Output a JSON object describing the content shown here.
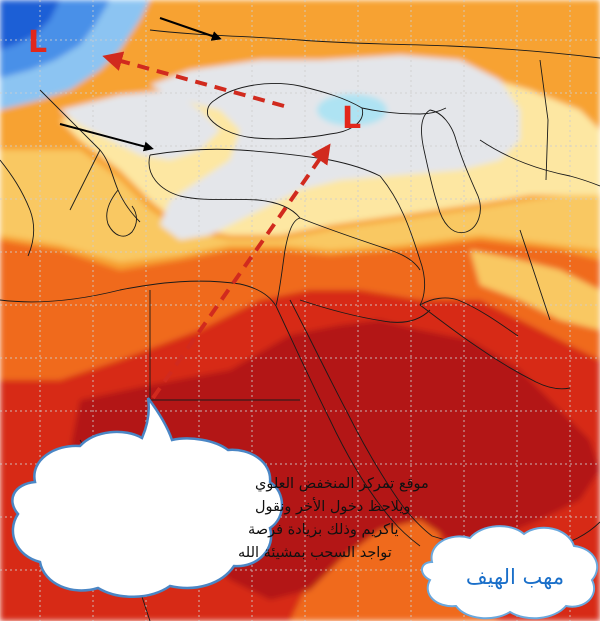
{
  "map": {
    "low_markers": [
      {
        "label": "L",
        "id": "low-northwest"
      },
      {
        "label": "L",
        "id": "low-caspian"
      }
    ],
    "colors": {
      "cold_deep": "#1b5fd6",
      "cold_mid": "#4a90e8",
      "cold_light": "#8cc4f2",
      "trough_light": "#aee3f3",
      "neutral": "#e4e6ea",
      "warm_pale": "#fde7a2",
      "warm_yellow": "#f9c862",
      "warm_orange": "#f7a233",
      "hot_orange": "#f06a1c",
      "hot_red": "#d72a14",
      "hot_darkred": "#b31612",
      "arrow_dashed": "#d12a1e",
      "arrow_solid": "#000000"
    }
  },
  "callout": {
    "lines": [
      "موقع تمركز المنخفض العلوي",
      "ويلاحظ دخول الأخر ونقول",
      "ياكريم وذلك بزيادة فرصة",
      "تواجد السحب بمشيئة الله"
    ]
  },
  "brand": {
    "text": "مهب الهيف"
  }
}
